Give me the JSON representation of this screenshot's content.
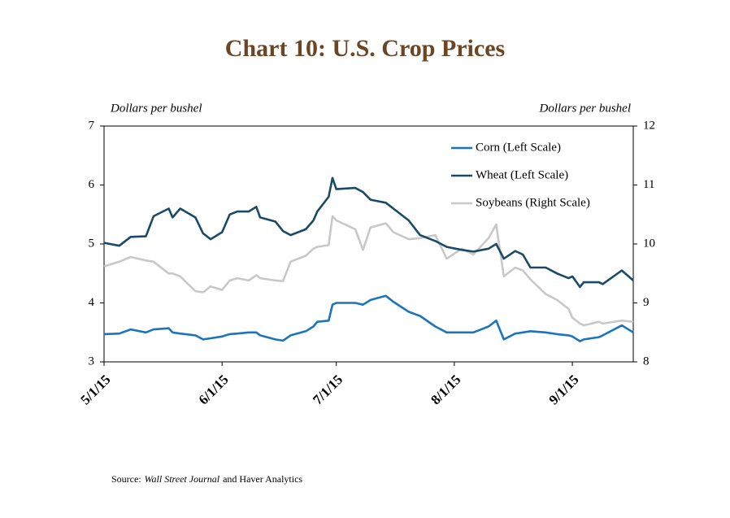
{
  "chart_data": {
    "type": "line",
    "title": "Chart 10: U.S. Crop Prices",
    "ylabel": "Dollars per bushel",
    "y2label": "Dollars per bushel",
    "source": [
      "Source:",
      "Wall Street Journal",
      "and Haver Analytics"
    ],
    "x": [
      "5/1/15",
      "5/5/15",
      "5/8/15",
      "5/12/15",
      "5/14/15",
      "5/18/15",
      "5/19/15",
      "5/21/15",
      "5/25/15",
      "5/27/15",
      "5/29/15",
      "6/1/15",
      "6/3/15",
      "6/5/15",
      "6/8/15",
      "6/10/15",
      "6/11/15",
      "6/15/15",
      "6/17/15",
      "6/19/15",
      "6/23/15",
      "6/25/15",
      "6/26/15",
      "6/29/15",
      "6/30/15",
      "7/1/15",
      "7/6/15",
      "7/8/15",
      "7/10/15",
      "7/14/15",
      "7/16/15",
      "7/20/15",
      "7/23/15",
      "7/27/15",
      "7/30/15",
      "8/3/15",
      "8/6/15",
      "8/10/15",
      "8/12/15",
      "8/14/15",
      "8/17/15",
      "8/19/15",
      "8/21/15",
      "8/25/15",
      "8/28/15",
      "8/31/15",
      "9/1/15",
      "9/3/15",
      "9/4/15",
      "9/8/15",
      "9/9/15",
      "9/14/15",
      "9/17/15"
    ],
    "xlim": [
      "5/1/15",
      "9/17/15"
    ],
    "xticks": [
      "5/1/15",
      "6/1/15",
      "7/1/15",
      "8/1/15",
      "9/1/15"
    ],
    "ylim": [
      3,
      7
    ],
    "yticks": [
      3,
      4,
      5,
      6,
      7
    ],
    "y2lim": [
      8,
      12
    ],
    "y2ticks": [
      8,
      9,
      10,
      11,
      12
    ],
    "legend": "upper right",
    "series": [
      {
        "name": "Corn (Left Scale)",
        "color": "#1a75bc",
        "axis": "y",
        "values": [
          3.47,
          3.48,
          3.55,
          3.5,
          3.55,
          3.57,
          3.5,
          3.48,
          3.45,
          3.38,
          3.4,
          3.43,
          3.47,
          3.48,
          3.5,
          3.5,
          3.45,
          3.38,
          3.36,
          3.45,
          3.52,
          3.6,
          3.68,
          3.7,
          3.97,
          4.0,
          4.0,
          3.97,
          4.05,
          4.12,
          4.02,
          3.85,
          3.78,
          3.6,
          3.5,
          3.5,
          3.5,
          3.6,
          3.7,
          3.38,
          3.48,
          3.5,
          3.52,
          3.5,
          3.47,
          3.45,
          3.43,
          3.35,
          3.38,
          3.42,
          3.45,
          3.62,
          3.5
        ]
      },
      {
        "name": "Wheat (Left Scale)",
        "color": "#1b4a66",
        "axis": "y",
        "values": [
          5.02,
          4.97,
          5.12,
          5.13,
          5.47,
          5.6,
          5.45,
          5.6,
          5.45,
          5.18,
          5.08,
          5.2,
          5.5,
          5.55,
          5.55,
          5.63,
          5.45,
          5.38,
          5.22,
          5.15,
          5.25,
          5.4,
          5.55,
          5.8,
          6.12,
          5.93,
          5.95,
          5.88,
          5.75,
          5.7,
          5.6,
          5.4,
          5.15,
          5.05,
          4.95,
          4.9,
          4.87,
          4.92,
          5.0,
          4.75,
          4.88,
          4.82,
          4.6,
          4.6,
          4.5,
          4.42,
          4.45,
          4.27,
          4.35,
          4.35,
          4.32,
          4.55,
          4.38
        ]
      },
      {
        "name": "Soybeans (Right Scale)",
        "color": "#c8c8c8",
        "axis": "y2",
        "values": [
          9.62,
          9.7,
          9.78,
          9.72,
          9.7,
          9.5,
          9.5,
          9.45,
          9.2,
          9.18,
          9.28,
          9.22,
          9.38,
          9.42,
          9.38,
          9.47,
          9.42,
          9.38,
          9.37,
          9.7,
          9.8,
          9.92,
          9.95,
          9.98,
          10.47,
          10.4,
          10.25,
          9.9,
          10.28,
          10.35,
          10.2,
          10.08,
          10.1,
          10.15,
          9.75,
          9.92,
          9.82,
          10.1,
          10.33,
          9.45,
          9.6,
          9.55,
          9.4,
          9.15,
          9.05,
          8.9,
          8.75,
          8.65,
          8.62,
          8.68,
          8.65,
          8.7,
          8.68
        ]
      }
    ]
  }
}
